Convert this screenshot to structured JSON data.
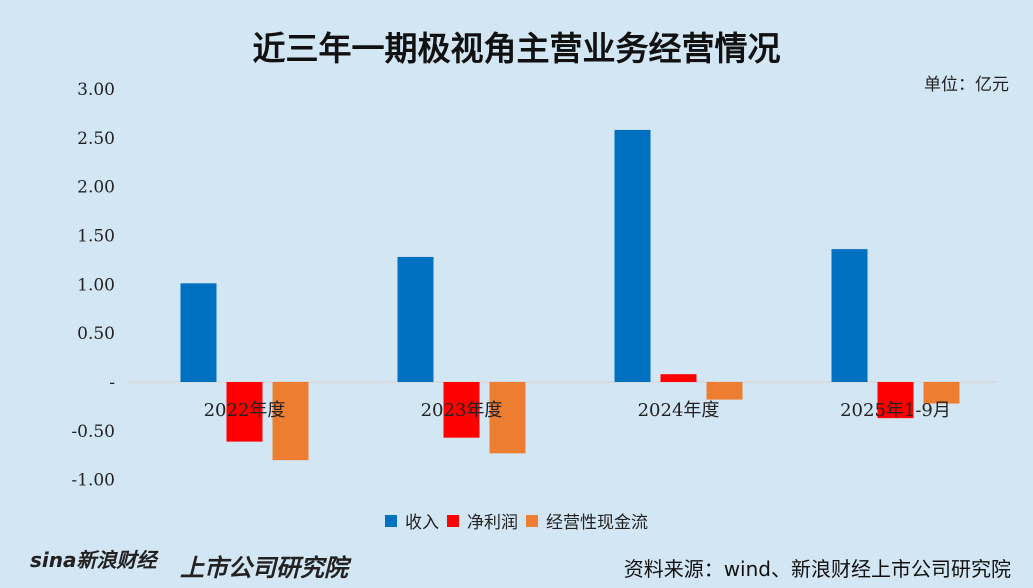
{
  "chart_data": {
    "type": "bar",
    "title": "近三年一期极视角主营业务经营情况",
    "unit": "单位：亿元",
    "categories": [
      "2022年度",
      "2023年度",
      "2024年度",
      "2025年1-9月"
    ],
    "series": [
      {
        "name": "收入",
        "color": "#0070c0",
        "values": [
          1.01,
          1.28,
          2.58,
          1.36
        ]
      },
      {
        "name": "净利润",
        "color": "#ff0000",
        "values": [
          -0.61,
          -0.57,
          0.08,
          -0.37
        ]
      },
      {
        "name": "经营性现金流",
        "color": "#ed7d31",
        "values": [
          -0.8,
          -0.73,
          -0.18,
          -0.22
        ]
      }
    ],
    "ylim": [
      -1.0,
      3.0
    ],
    "yticks": [
      "3.00",
      "2.50",
      "2.00",
      "1.50",
      "1.00",
      "0.50",
      "-",
      "-0.50",
      "-1.00"
    ],
    "grid": false,
    "legend": "bottom"
  },
  "source": "资料来源：wind、新浪财经上市公司研究院",
  "logo": "sina新浪财经",
  "logo2": "上市公司研究院"
}
